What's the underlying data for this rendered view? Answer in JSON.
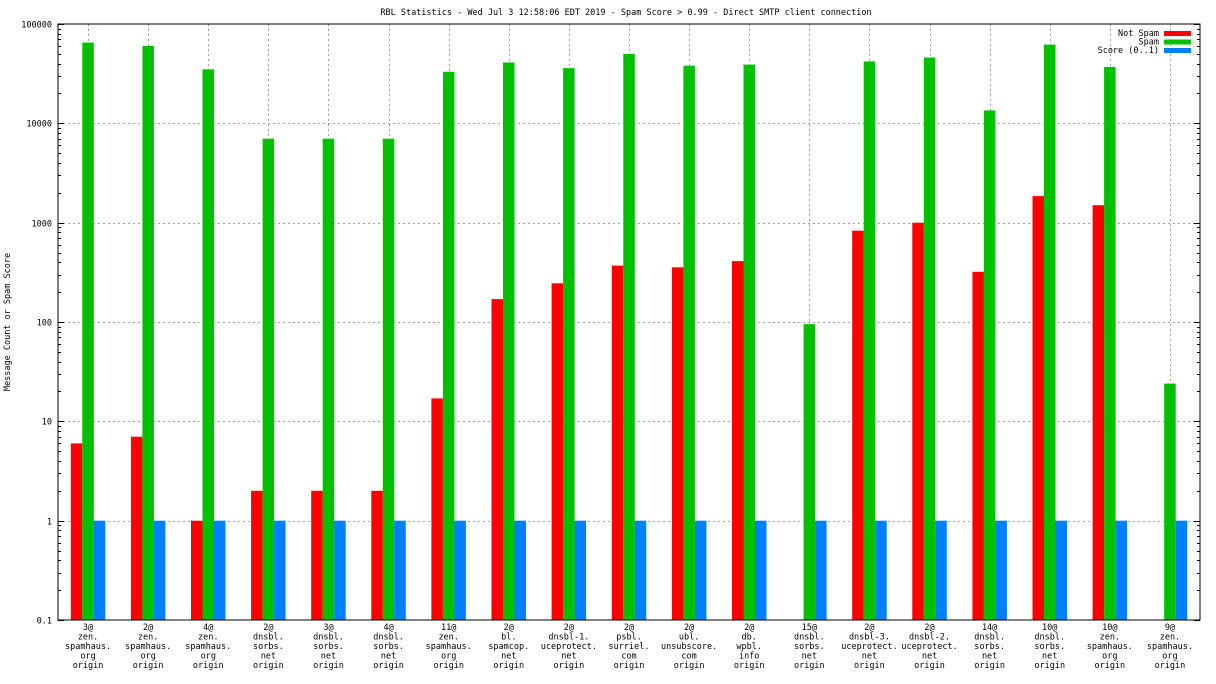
{
  "chart_data": {
    "type": "bar",
    "title": "RBL Statistics - Wed Jul  3 12:58:06 EDT 2019 - Spam Score > 0.99 - Direct SMTP client connection",
    "xlabel": "",
    "ylabel": "Message Count or Spam Score",
    "yscale": "log",
    "ylim": [
      0.1,
      100000
    ],
    "yticks": [
      {
        "value": 0.1,
        "label": "0.1"
      },
      {
        "value": 1,
        "label": "1"
      },
      {
        "value": 10,
        "label": "10"
      },
      {
        "value": 100,
        "label": "100"
      },
      {
        "value": 1000,
        "label": "1000"
      },
      {
        "value": 10000,
        "label": "10000"
      },
      {
        "value": 100000,
        "label": "100000"
      }
    ],
    "grid": true,
    "legend_position": "top-right",
    "categories": [
      [
        "3@",
        "zen.",
        "spamhaus.",
        "org",
        "origin"
      ],
      [
        "2@",
        "zen.",
        "spamhaus.",
        "org",
        "origin"
      ],
      [
        "4@",
        "zen.",
        "spamhaus.",
        "org",
        "origin"
      ],
      [
        "2@",
        "dnsbl.",
        "sorbs.",
        "net",
        "origin"
      ],
      [
        "3@",
        "dnsbl.",
        "sorbs.",
        "net",
        "origin"
      ],
      [
        "4@",
        "dnsbl.",
        "sorbs.",
        "net",
        "origin"
      ],
      [
        "11@",
        "zen.",
        "spamhaus.",
        "org",
        "origin"
      ],
      [
        "2@",
        "bl.",
        "spamcop.",
        "net",
        "origin"
      ],
      [
        "2@",
        "dnsbl-1.",
        "uceprotect.",
        "net",
        "origin"
      ],
      [
        "2@",
        "psbl.",
        "surriel.",
        "com",
        "origin"
      ],
      [
        "2@",
        "ubl.",
        "unsubscore.",
        "com",
        "origin"
      ],
      [
        "2@",
        "db.",
        "wpbl.",
        "info",
        "origin"
      ],
      [
        "15@",
        "dnsbl.",
        "sorbs.",
        "net",
        "origin"
      ],
      [
        "2@",
        "dnsbl-3.",
        "uceprotect.",
        "net",
        "origin"
      ],
      [
        "2@",
        "dnsbl-2.",
        "uceprotect.",
        "net",
        "origin"
      ],
      [
        "14@",
        "dnsbl.",
        "sorbs.",
        "net",
        "origin"
      ],
      [
        "10@",
        "dnsbl.",
        "sorbs.",
        "net",
        "origin"
      ],
      [
        "10@",
        "zen.",
        "spamhaus.",
        "org",
        "origin"
      ],
      [
        "9@",
        "zen.",
        "spamhaus.",
        "org",
        "origin"
      ]
    ],
    "series": [
      {
        "name": "Not Spam",
        "color": "#ff0000",
        "values": [
          6,
          7,
          1,
          2,
          2,
          2,
          17,
          170,
          245,
          370,
          355,
          410,
          null,
          830,
          1000,
          320,
          1850,
          1500,
          null
        ]
      },
      {
        "name": "Spam",
        "color": "#00c000",
        "values": [
          65000,
          60000,
          35000,
          7000,
          7000,
          7000,
          33000,
          41000,
          36000,
          50000,
          38000,
          39000,
          95,
          42000,
          46000,
          13500,
          62000,
          37000,
          24
        ]
      },
      {
        "name": "Score (0..1)",
        "color": "#0080ff",
        "values": [
          1,
          1,
          1,
          1,
          1,
          1,
          1,
          1,
          1,
          1,
          1,
          1,
          1,
          1,
          1,
          1,
          1,
          1,
          1
        ]
      }
    ]
  }
}
